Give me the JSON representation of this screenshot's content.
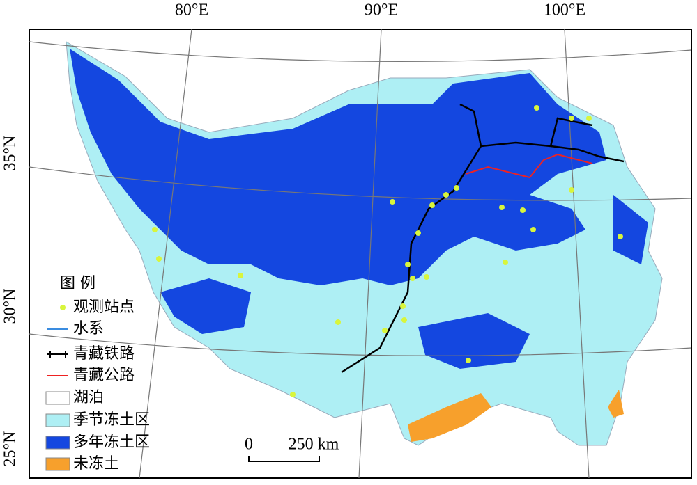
{
  "graticule": {
    "longitudes": [
      "80°E",
      "90°E",
      "100°E"
    ],
    "latitudes": [
      "35°N",
      "30°N",
      "25°N"
    ]
  },
  "legend": {
    "title": "图 例",
    "items": [
      "观测站点",
      "水系",
      "青藏铁路",
      "青藏公路",
      "湖泊",
      "季节冻土区",
      "多年冻土区",
      "未冻土"
    ]
  },
  "scale_bar": {
    "start": "0",
    "end": "250 km"
  }
}
